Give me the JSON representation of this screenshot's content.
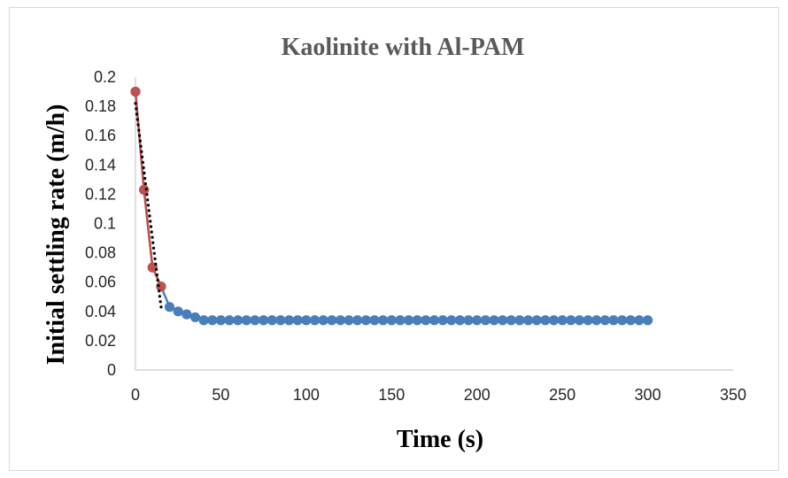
{
  "chart_data": {
    "type": "scatter",
    "title": "Kaolinite with Al-PAM",
    "xlabel": "Time (s)",
    "ylabel": "Initial settling rate (m/h)",
    "xlim": [
      0,
      350
    ],
    "ylim": [
      0,
      0.2
    ],
    "x_ticks": [
      "0",
      "50",
      "100",
      "150",
      "200",
      "250",
      "300",
      "350"
    ],
    "y_ticks": [
      "0",
      "0.02",
      "0.04",
      "0.06",
      "0.08",
      "0.1",
      "0.12",
      "0.14",
      "0.16",
      "0.18",
      "0.2"
    ],
    "grid": false,
    "legend": "none",
    "series": [
      {
        "style": "line-markers",
        "color": "#4a7ebb",
        "x": [
          0,
          5,
          10,
          15,
          20,
          25,
          30,
          35,
          40,
          45,
          50,
          55,
          60,
          65,
          70,
          75,
          80,
          85,
          90,
          95,
          100,
          105,
          110,
          115,
          120,
          125,
          130,
          135,
          140,
          145,
          150,
          155,
          160,
          165,
          170,
          175,
          180,
          185,
          190,
          195,
          200,
          205,
          210,
          215,
          220,
          225,
          230,
          235,
          240,
          245,
          250,
          255,
          260,
          265,
          270,
          275,
          280,
          285,
          290,
          295,
          300
        ],
        "y": [
          0.19,
          0.123,
          0.07,
          0.057,
          0.043,
          0.04,
          0.038,
          0.036,
          0.034,
          0.034,
          0.034,
          0.034,
          0.034,
          0.034,
          0.034,
          0.034,
          0.034,
          0.034,
          0.034,
          0.034,
          0.034,
          0.034,
          0.034,
          0.034,
          0.034,
          0.034,
          0.034,
          0.034,
          0.034,
          0.034,
          0.034,
          0.034,
          0.034,
          0.034,
          0.034,
          0.034,
          0.034,
          0.034,
          0.034,
          0.034,
          0.034,
          0.034,
          0.034,
          0.034,
          0.034,
          0.034,
          0.034,
          0.034,
          0.034,
          0.034,
          0.034,
          0.034,
          0.034,
          0.034,
          0.034,
          0.034,
          0.034,
          0.034,
          0.034,
          0.034,
          0.034
        ]
      },
      {
        "style": "line-markers",
        "color": "#c0504d",
        "x": [
          0,
          5,
          10,
          15
        ],
        "y": [
          0.19,
          0.123,
          0.07,
          0.057
        ]
      },
      {
        "style": "dotted-trendline",
        "color": "#000000",
        "x": [
          0,
          15
        ],
        "y": [
          0.182,
          0.043
        ]
      }
    ]
  }
}
